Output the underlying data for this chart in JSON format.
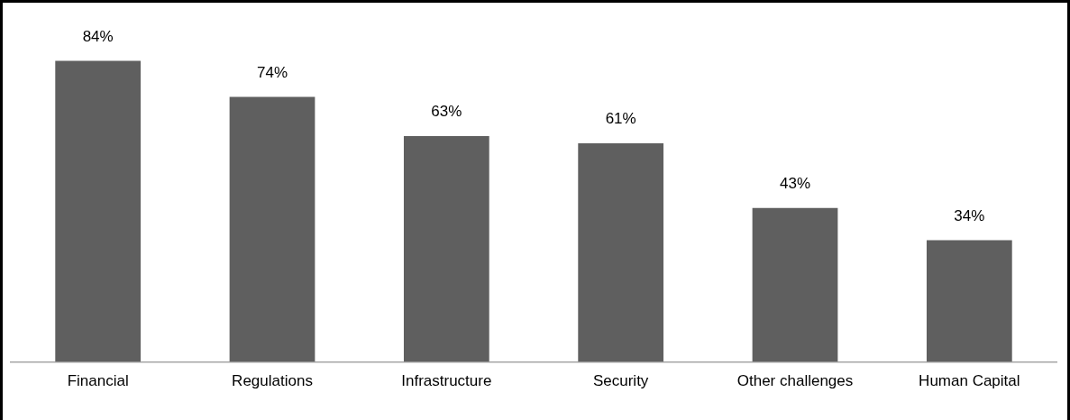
{
  "chart_data": {
    "type": "bar",
    "categories": [
      "Financial",
      "Regulations",
      "Infrastructure",
      "Security",
      "Other challenges",
      "Human Capital"
    ],
    "values": [
      84,
      74,
      63,
      61,
      43,
      34
    ],
    "value_labels": [
      "84%",
      "74%",
      "63%",
      "61%",
      "43%",
      "34%"
    ],
    "color": "#5f5f5f",
    "ylim": [
      0,
      100
    ],
    "tick_labels": "x",
    "grid": false,
    "legend": false
  }
}
